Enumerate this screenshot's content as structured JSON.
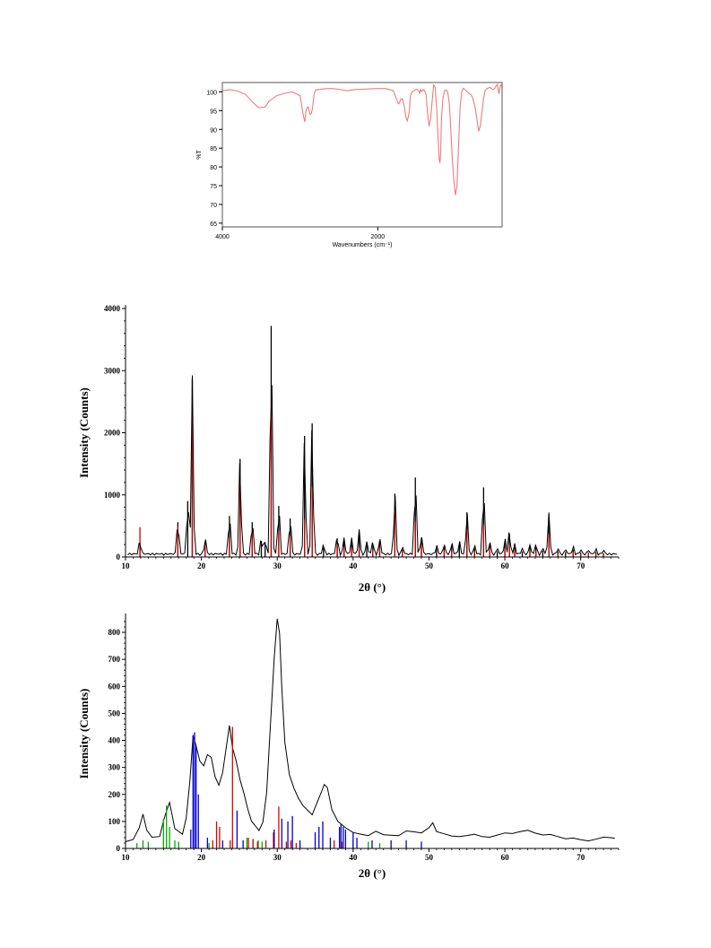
{
  "chart_data": [
    {
      "type": "line",
      "xlabel": "Wavenumbers (cm⁻¹)",
      "ylabel": "%T",
      "xlim": [
        4000,
        400
      ],
      "ylim": [
        64,
        102.5
      ],
      "xticks": [
        4000,
        2000
      ],
      "yticks": [
        65,
        70,
        75,
        80,
        85,
        90,
        95,
        100
      ],
      "grid": false,
      "series": [
        {
          "color": "#f07b7b",
          "x": [
            4000,
            3900,
            3800,
            3700,
            3600,
            3530,
            3450,
            3400,
            3300,
            3200,
            3100,
            3000,
            2960,
            2940,
            2925,
            2910,
            2895,
            2870,
            2855,
            2840,
            2820,
            2800,
            2700,
            2600,
            2500,
            2400,
            2300,
            2200,
            2100,
            2000,
            1900,
            1800,
            1760,
            1740,
            1730,
            1720,
            1700,
            1680,
            1660,
            1640,
            1620,
            1600,
            1590,
            1580,
            1560,
            1540,
            1500,
            1470,
            1460,
            1450,
            1440,
            1430,
            1420,
            1400,
            1380,
            1360,
            1340,
            1320,
            1300,
            1280,
            1260,
            1240,
            1230,
            1220,
            1210,
            1200,
            1190,
            1180,
            1160,
            1140,
            1120,
            1100,
            1080,
            1060,
            1040,
            1020,
            1000,
            980,
            960,
            940,
            920,
            900,
            880,
            860,
            840,
            820,
            800,
            780,
            760,
            740,
            720,
            700,
            680,
            660,
            640,
            620,
            600,
            580,
            560,
            540,
            520,
            500,
            480,
            460,
            440,
            420,
            400
          ],
          "y": [
            100.3,
            100.6,
            100.2,
            99.3,
            97.0,
            95.8,
            96.0,
            97.5,
            99.0,
            99.6,
            100.0,
            99.0,
            94.0,
            92.0,
            94.8,
            95.8,
            96.0,
            94.0,
            94.2,
            95.6,
            99.4,
            100.5,
            100.8,
            100.9,
            100.7,
            100.3,
            100.6,
            100.7,
            100.8,
            100.9,
            100.9,
            100.3,
            98.2,
            97.0,
            96.8,
            97.2,
            98.2,
            98.0,
            96.2,
            93.5,
            92.3,
            94.0,
            96.0,
            98.8,
            100.0,
            100.3,
            100.7,
            100.2,
            99.5,
            100.6,
            100.2,
            100.1,
            100.6,
            100.4,
            99.5,
            94.5,
            90.8,
            93.0,
            97.5,
            102.0,
            101.0,
            95.0,
            90.0,
            86.0,
            82.0,
            81.0,
            84.0,
            93.0,
            98.5,
            100.4,
            100.5,
            100.0,
            97.0,
            90.0,
            82.0,
            76.0,
            72.5,
            75.0,
            86.0,
            96.0,
            100.0,
            101.0,
            100.7,
            100.2,
            99.8,
            99.5,
            99.2,
            98.5,
            97.0,
            95.0,
            92.0,
            89.5,
            91.0,
            94.5,
            98.0,
            100.2,
            100.8,
            101.0,
            101.2,
            101.0,
            100.6,
            100.8,
            101.5,
            102.0,
            99.5,
            101.8,
            101.5
          ]
        }
      ]
    },
    {
      "type": "line",
      "xlabel": "2θ (°)",
      "ylabel": "Intensity (Counts)",
      "xlim": [
        10,
        75
      ],
      "ylim": [
        0,
        4000
      ],
      "xticks": [
        10,
        20,
        30,
        40,
        50,
        60,
        70
      ],
      "yticks": [
        0,
        1000,
        2000,
        3000,
        4000
      ],
      "grid": false,
      "series": [
        {
          "color": "#000000",
          "x": [
            11.9,
            16.9,
            18.2,
            18.8,
            20.5,
            23.7,
            25.1,
            26.7,
            27.9,
            28.4,
            29.2,
            30.2,
            31.7,
            33.6,
            34.6,
            36.1,
            37.9,
            38.8,
            39.8,
            40.8,
            41.8,
            42.6,
            43.5,
            45.5,
            46.5,
            48.2,
            49.0,
            51.0,
            52.0,
            53.0,
            54.0,
            55.0,
            56.0,
            57.2,
            58.0,
            59.0,
            60.0,
            60.6,
            61.3,
            62.3,
            63.3,
            64.1,
            65.0,
            65.8,
            67.0,
            68.0,
            69.0,
            70.0,
            71.0,
            72.0,
            73.0
          ],
          "heights": [
            230,
            560,
            900,
            2870,
            250,
            660,
            1580,
            560,
            260,
            240,
            3720,
            820,
            620,
            1950,
            2150,
            150,
            300,
            270,
            250,
            400,
            210,
            210,
            260,
            1020,
            120,
            1280,
            310,
            140,
            170,
            180,
            210,
            720,
            140,
            1120,
            210,
            90,
            250,
            370,
            160,
            90,
            160,
            160,
            100,
            680,
            90,
            80,
            120,
            70,
            70,
            80,
            60
          ]
        },
        {
          "color": "#cc0000",
          "x": [
            11.9,
            16.9,
            18.8,
            20.5,
            23.7,
            25.1,
            26.7,
            29.2,
            30.2,
            31.7,
            33.6,
            34.6,
            37.9,
            38.8,
            39.8,
            40.8,
            42.6,
            43.5,
            45.5,
            46.5,
            48.2,
            49.0,
            52.0,
            53.0,
            55.0,
            56.0,
            57.2,
            58.0,
            60.0,
            60.6,
            61.3,
            63.3,
            64.1,
            65.8,
            67.0,
            69.0,
            70.0,
            71.0,
            72.0,
            73.0
          ],
          "heights": [
            480,
            500,
            2380,
            200,
            300,
            1200,
            380,
            2400,
            420,
            340,
            600,
            1130,
            200,
            160,
            150,
            150,
            120,
            160,
            800,
            80,
            580,
            200,
            110,
            90,
            450,
            90,
            520,
            150,
            140,
            200,
            110,
            100,
            110,
            380,
            60,
            90,
            50,
            60,
            70,
            40
          ]
        }
      ]
    },
    {
      "type": "line",
      "xlabel": "2θ (°)",
      "ylabel": "Intensity (Counts)",
      "xlim": [
        10,
        75
      ],
      "ylim": [
        0,
        850
      ],
      "xticks": [
        10,
        20,
        30,
        40,
        50,
        60,
        70
      ],
      "yticks": [
        0,
        100,
        200,
        300,
        400,
        500,
        600,
        700,
        800
      ],
      "grid": false,
      "series": [
        {
          "color": "#000000",
          "x": [
            10,
            11,
            11.8,
            12.3,
            12.8,
            13.5,
            14.5,
            15.0,
            15.4,
            15.8,
            16.5,
            17.5,
            18.0,
            18.5,
            18.9,
            19.3,
            19.8,
            20.3,
            20.8,
            21.3,
            21.8,
            22.3,
            22.8,
            23.3,
            23.7,
            24.1,
            24.6,
            25.1,
            25.6,
            26.1,
            26.6,
            27.1,
            27.6,
            28.1,
            28.6,
            29.1,
            29.6,
            30.0,
            30.3,
            30.6,
            31.0,
            31.6,
            32.2,
            32.8,
            33.4,
            34.0,
            34.6,
            35.2,
            35.8,
            36.2,
            36.6,
            37.2,
            38.0,
            39.0,
            40.0,
            41.0,
            42.0,
            43.0,
            44.0,
            45.0,
            46.0,
            47.0,
            48.0,
            49.0,
            50.0,
            50.5,
            51.0,
            52.0,
            53.0,
            54.0,
            55.0,
            56.0,
            57.0,
            58.0,
            59.0,
            60.0,
            61.0,
            62.0,
            63.0,
            64.0,
            65.0,
            66.0,
            67.0,
            68.0,
            69.0,
            70.0,
            71.0,
            72.0,
            73.0,
            74.0,
            74.5
          ],
          "y": [
            25,
            30,
            70,
            120,
            60,
            35,
            40,
            100,
            140,
            175,
            80,
            60,
            120,
            260,
            420,
            380,
            320,
            300,
            340,
            330,
            260,
            230,
            280,
            380,
            460,
            380,
            330,
            260,
            210,
            150,
            100,
            80,
            60,
            90,
            200,
            450,
            700,
            850,
            800,
            600,
            400,
            280,
            230,
            190,
            160,
            140,
            120,
            160,
            200,
            230,
            220,
            140,
            100,
            80,
            65,
            60,
            55,
            70,
            55,
            50,
            45,
            60,
            55,
            50,
            70,
            90,
            60,
            55,
            50,
            50,
            55,
            60,
            50,
            45,
            50,
            55,
            50,
            55,
            60,
            50,
            45,
            50,
            45,
            40,
            45,
            40,
            35,
            40,
            45,
            40,
            35
          ]
        },
        {
          "color": "#00aa00",
          "x": [
            11.5,
            12.3,
            13.0,
            15.0,
            15.4,
            15.8,
            16.5,
            17.0,
            21.0,
            26.0,
            26.8,
            27.5,
            28.0,
            40.0,
            42.0,
            43.5
          ],
          "heights": [
            20,
            30,
            25,
            110,
            160,
            80,
            30,
            25,
            20,
            40,
            35,
            30,
            25,
            30,
            25,
            20
          ]
        },
        {
          "color": "#dd0000",
          "x": [
            21.5,
            22.0,
            22.4,
            23.8,
            24.1,
            26.2,
            26.8,
            27.4,
            28.5,
            29.5,
            30.2,
            31.2,
            31.8,
            32.5,
            37.5,
            38.5
          ],
          "heights": [
            30,
            100,
            80,
            30,
            450,
            40,
            35,
            25,
            30,
            60,
            155,
            25,
            30,
            20,
            30,
            25
          ]
        },
        {
          "color": "#0000cc",
          "x": [
            18.6,
            18.9,
            19.1,
            19.3,
            19.6,
            20.8,
            22.8,
            24.7,
            25.5,
            29.6,
            30.6,
            31.4,
            32.0,
            33.0,
            35.0,
            35.5,
            36.0,
            37.0,
            38.2,
            38.4,
            38.7,
            39.0,
            40.0,
            40.5,
            42.5,
            45.0,
            47.0,
            49.0
          ],
          "heights": [
            70,
            420,
            430,
            380,
            200,
            40,
            30,
            140,
            30,
            70,
            110,
            100,
            120,
            30,
            60,
            80,
            100,
            40,
            80,
            90,
            80,
            70,
            60,
            40,
            30,
            30,
            30,
            25
          ]
        }
      ]
    }
  ]
}
